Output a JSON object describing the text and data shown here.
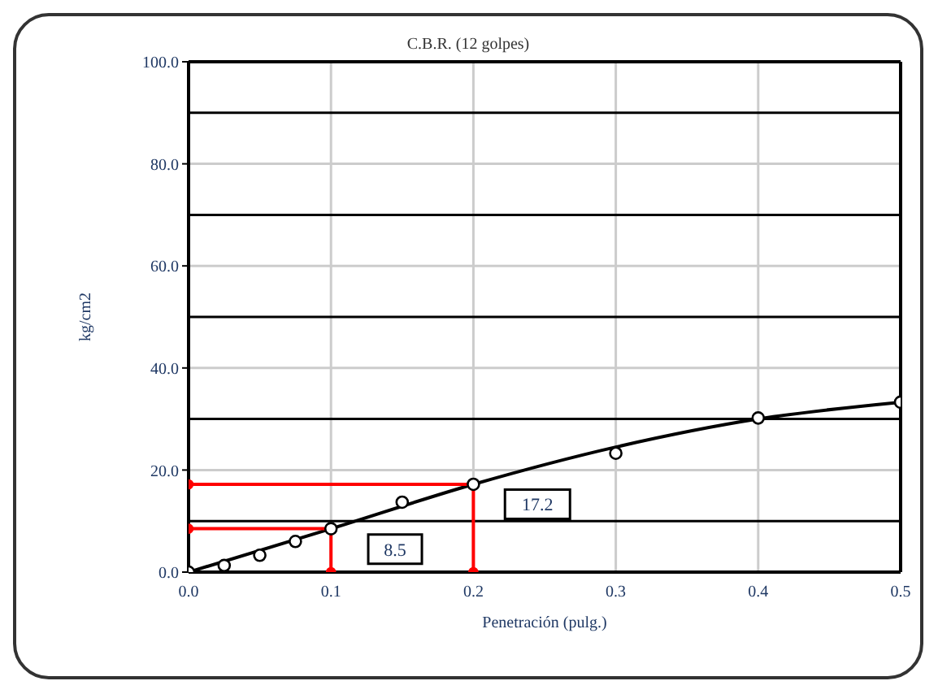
{
  "chart_data": {
    "type": "scatter",
    "title": "C.B.R. (12 golpes)",
    "xlabel": "Penetración (pulg.)",
    "ylabel": "kg/cm2",
    "xlim": [
      0,
      0.5
    ],
    "xticks": [
      {
        "value": 0,
        "label": "0.0"
      },
      0.1,
      0.2,
      0.3,
      0.4,
      0.5
    ],
    "ylim": [
      0,
      100
    ],
    "yticks": [
      {
        "value": 0,
        "label": "0.0"
      },
      {
        "value": 20,
        "label": "20.0"
      },
      {
        "value": 40,
        "label": "40.0"
      },
      {
        "value": 60,
        "label": "60.0"
      },
      {
        "value": 80,
        "label": "80.0"
      },
      {
        "value": 100,
        "label": "100.0"
      }
    ],
    "grid": true,
    "marker": "circle",
    "series": [
      {
        "color": "#000000",
        "x": [
          0,
          0.025,
          0.05,
          0.075,
          0.1,
          0.15,
          0.2,
          0.3,
          0.4,
          0.5
        ],
        "values": [
          0,
          1.3,
          3.3,
          6.0,
          8.5,
          13.7,
          17.2,
          23.3,
          30.2,
          33.3
        ]
      },
      {
        "type": "line",
        "color": "#000000",
        "marker": "none",
        "x": [
          0,
          0.1,
          0.2,
          0.3,
          0.4,
          0.5
        ],
        "values": [
          0,
          8.5,
          17.2,
          24.5,
          30.0,
          33.3
        ]
      },
      {
        "type": "line",
        "color": "#ff0000",
        "marker": "circle",
        "x": [
          0,
          0.1,
          0.1
        ],
        "values": [
          8.5,
          8.5,
          0
        ]
      },
      {
        "type": "line",
        "color": "#ff0000",
        "marker": "circle",
        "x": [
          0,
          0.2,
          0.2
        ],
        "values": [
          17.2,
          17.2,
          0
        ]
      }
    ],
    "ref_lines": [
      {
        "axis": "y",
        "value": 10,
        "color": "#000000"
      },
      {
        "axis": "y",
        "value": 30,
        "color": "#000000"
      },
      {
        "axis": "y",
        "value": 50,
        "color": "#000000"
      },
      {
        "axis": "y",
        "value": 70,
        "color": "#000000"
      },
      {
        "axis": "y",
        "value": 90,
        "color": "#000000"
      }
    ],
    "annotations": [
      {
        "text": "8.5",
        "x": 0.145,
        "y": 4.5
      },
      {
        "text": "17.2",
        "x": 0.245,
        "y": 13.3
      }
    ]
  }
}
